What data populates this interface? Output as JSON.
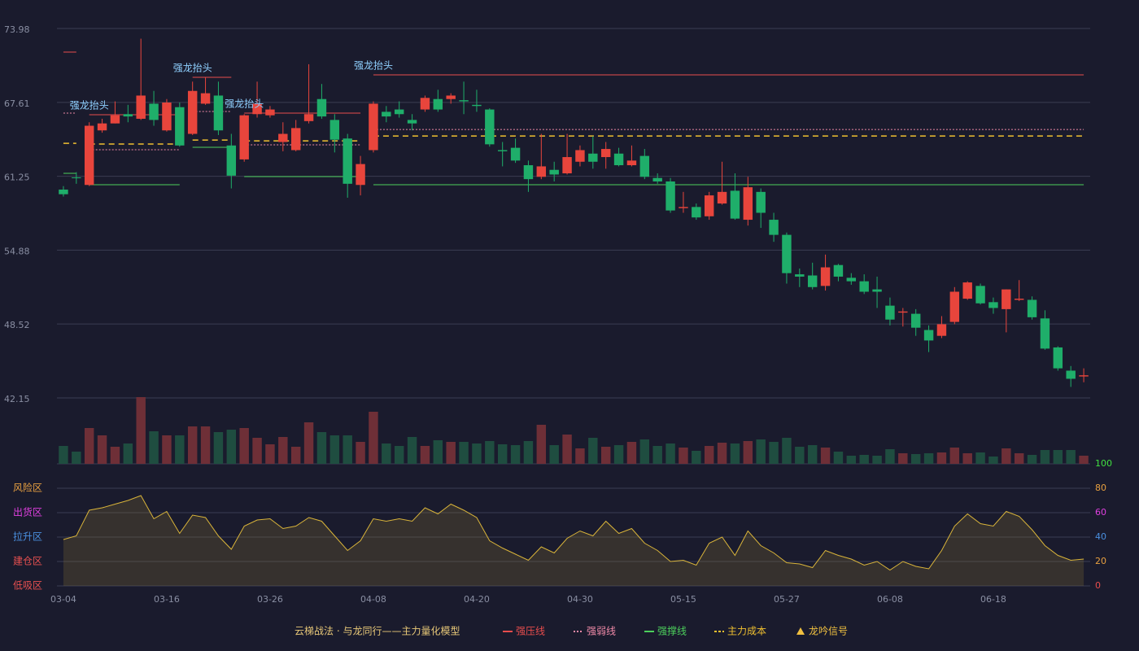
{
  "chart_data": {
    "type": "candlestick",
    "categories": [
      "03-04",
      null,
      null,
      null,
      null,
      null,
      null,
      null,
      "03-16",
      null,
      null,
      null,
      null,
      null,
      null,
      null,
      "03-26",
      null,
      null,
      null,
      null,
      null,
      null,
      null,
      "04-08",
      null,
      null,
      null,
      null,
      null,
      null,
      null,
      "04-20",
      null,
      null,
      null,
      null,
      null,
      null,
      null,
      "04-30",
      null,
      null,
      null,
      null,
      null,
      null,
      null,
      "05-15",
      null,
      null,
      null,
      null,
      null,
      null,
      null,
      "05-27",
      null,
      null,
      null,
      null,
      null,
      null,
      null,
      "06-08",
      null,
      null,
      null,
      null,
      null,
      null,
      null,
      "06-18",
      null,
      null,
      null,
      null,
      null,
      null,
      null
    ],
    "open": [
      60.1,
      61.15,
      60.5,
      65.2,
      65.8,
      66.6,
      66.2,
      67.5,
      65.2,
      67.2,
      64.9,
      67.5,
      68.2,
      63.9,
      62.7,
      66.6,
      66.5,
      64.2,
      63.5,
      66.0,
      67.9,
      66.1,
      64.5,
      60.5,
      63.5,
      66.8,
      67.0,
      66.1,
      67.0,
      67.9,
      67.9,
      67.8,
      67.4,
      67.0,
      63.5,
      63.7,
      62.2,
      61.2,
      61.8,
      61.5,
      62.5,
      63.2,
      62.9,
      63.2,
      62.2,
      63.0,
      61.1,
      60.8,
      58.5,
      58.6,
      57.8,
      58.9,
      60.0,
      57.5,
      59.9,
      57.5,
      56.2,
      52.8,
      52.7,
      51.8,
      53.6,
      52.5,
      52.2,
      51.5,
      50.1,
      49.5,
      49.4,
      48.0,
      47.5,
      48.7,
      50.7,
      51.8,
      50.4,
      49.8,
      50.6,
      50.6,
      49.0,
      46.5,
      44.5,
      44.0
    ],
    "high": [
      60.4,
      61.6,
      65.9,
      66.2,
      67.7,
      67.4,
      73.1,
      68.6,
      67.9,
      67.6,
      69.4,
      69.8,
      69.4,
      64.9,
      66.6,
      69.4,
      67.3,
      65.9,
      66.1,
      70.9,
      69.2,
      66.6,
      64.9,
      63.0,
      67.7,
      67.3,
      67.7,
      66.6,
      68.2,
      68.7,
      68.4,
      69.4,
      68.7,
      67.1,
      64.2,
      64.5,
      62.6,
      64.9,
      62.5,
      64.9,
      63.9,
      64.7,
      64.2,
      63.7,
      63.9,
      63.6,
      61.5,
      61.1,
      59.9,
      58.9,
      59.9,
      62.5,
      61.5,
      61.2,
      60.2,
      58.1,
      56.4,
      53.3,
      53.8,
      54.5,
      53.7,
      52.9,
      52.8,
      52.6,
      50.8,
      49.9,
      49.8,
      48.4,
      49.2,
      51.7,
      52.2,
      52.0,
      50.8,
      51.5,
      52.3,
      50.9,
      49.7,
      46.6,
      44.9,
      44.7
    ],
    "low": [
      59.5,
      60.6,
      60.4,
      65.0,
      65.8,
      65.9,
      66.1,
      65.6,
      65.1,
      63.8,
      64.8,
      67.4,
      64.8,
      60.2,
      62.5,
      66.3,
      66.3,
      63.4,
      63.4,
      65.8,
      66.2,
      63.3,
      59.4,
      59.6,
      63.3,
      65.9,
      66.3,
      65.2,
      66.8,
      66.8,
      67.5,
      66.6,
      66.8,
      63.8,
      62.1,
      62.4,
      59.9,
      61.0,
      60.8,
      61.4,
      62.1,
      61.9,
      61.9,
      62.1,
      62.1,
      61.0,
      60.6,
      58.1,
      58.1,
      57.5,
      57.5,
      58.8,
      57.5,
      57.0,
      56.8,
      55.6,
      52.0,
      51.7,
      51.5,
      51.4,
      52.2,
      51.9,
      51.1,
      49.9,
      48.4,
      48.3,
      47.5,
      46.1,
      47.3,
      48.5,
      50.6,
      50.2,
      49.4,
      47.8,
      50.5,
      48.9,
      46.3,
      44.5,
      43.1,
      43.5
    ],
    "close": [
      59.7,
      61.1,
      65.6,
      65.8,
      66.5,
      66.4,
      68.2,
      66.1,
      67.6,
      63.9,
      68.6,
      68.4,
      65.2,
      61.3,
      66.5,
      67.5,
      67.0,
      64.9,
      65.4,
      66.6,
      66.4,
      64.4,
      60.6,
      62.3,
      67.5,
      66.4,
      66.6,
      65.8,
      68.0,
      67.0,
      68.2,
      67.7,
      67.3,
      64.0,
      63.4,
      62.6,
      61.0,
      62.1,
      61.4,
      62.9,
      63.5,
      62.5,
      63.6,
      62.2,
      62.6,
      61.2,
      60.8,
      58.3,
      58.6,
      57.7,
      59.6,
      59.9,
      57.6,
      60.3,
      58.1,
      56.2,
      52.9,
      52.6,
      51.7,
      53.4,
      52.6,
      52.2,
      51.3,
      51.3,
      48.9,
      49.6,
      48.2,
      47.1,
      48.5,
      51.3,
      52.1,
      50.3,
      49.9,
      51.5,
      50.7,
      49.1,
      46.4,
      44.7,
      43.8,
      44.1
    ],
    "ylim": [
      42.15,
      73.98
    ],
    "yticks": [
      73.98,
      67.61,
      61.25,
      54.88,
      48.52,
      42.15
    ],
    "grid": true,
    "up_color": "#e8453c",
    "down_color": "#1fae6a",
    "volume": {
      "values": [
        22,
        15,
        44,
        35,
        21,
        25,
        82,
        40,
        35,
        35,
        46,
        46,
        39,
        42,
        44,
        32,
        24,
        33,
        21,
        51,
        39,
        35,
        35,
        27,
        64,
        25,
        22,
        33,
        22,
        29,
        27,
        27,
        25,
        28,
        24,
        23,
        28,
        48,
        23,
        36,
        19,
        32,
        21,
        23,
        27,
        30,
        22,
        25,
        20,
        16,
        22,
        26,
        25,
        28,
        30,
        27,
        32,
        21,
        23,
        20,
        15,
        10,
        11,
        10,
        18,
        13,
        12,
        13,
        14,
        20,
        13,
        14,
        9,
        19,
        13,
        11,
        17,
        17,
        17,
        10
      ],
      "ylim": [
        0,
        82
      ],
      "up_color": "#6e2f37",
      "down_color": "#1f4d40"
    },
    "indicator": {
      "values": [
        38,
        41,
        62,
        64,
        67,
        70,
        74,
        55,
        61,
        43,
        58,
        56,
        41,
        30,
        49,
        54,
        55,
        47,
        49,
        56,
        53,
        41,
        29,
        37,
        55,
        53,
        55,
        53,
        64,
        59,
        67,
        62,
        56,
        37,
        31,
        26,
        21,
        32,
        27,
        39,
        45,
        41,
        53,
        43,
        47,
        35,
        29,
        20,
        21,
        17,
        35,
        40,
        25,
        45,
        33,
        27,
        19,
        18,
        15,
        29,
        25,
        22,
        17,
        20,
        13,
        20,
        16,
        14,
        29,
        49,
        59,
        51,
        49,
        61,
        57,
        46,
        33,
        25,
        21,
        22
      ],
      "ylim": [
        0,
        100
      ],
      "yticks": [
        0,
        20,
        40,
        60,
        80,
        100
      ],
      "tick_colors": [
        "#e84d4d",
        "#e8a040",
        "#4a90e0",
        "#e040e0",
        "#e8a040",
        "#40e040"
      ],
      "color": "#d9b43a",
      "zones": [
        {
          "label": "风险区",
          "value": 80,
          "color": "#e8a040"
        },
        {
          "label": "出货区",
          "value": 60,
          "color": "#e040e0"
        },
        {
          "label": "拉升区",
          "value": 40,
          "color": "#4a90e0"
        },
        {
          "label": "建仓区",
          "value": 20,
          "color": "#e85050"
        },
        {
          "label": "低吸区",
          "value": 0,
          "color": "#e85050"
        }
      ]
    },
    "levels": [
      {
        "name": "强压线",
        "color": "#e84d4d",
        "style": "solid",
        "segments": [
          {
            "start": 0,
            "end": 1,
            "value": 71.95
          },
          {
            "start": 2,
            "end": 9,
            "value": 66.55
          },
          {
            "start": 10,
            "end": 13,
            "value": 69.77
          },
          {
            "start": 14,
            "end": 23,
            "value": 66.69
          },
          {
            "start": 24,
            "end": 79,
            "value": 69.98
          }
        ]
      },
      {
        "name": "强弱线",
        "color": "#f08aa8",
        "style": "dotted",
        "segments": [
          {
            "start": 0,
            "end": 1,
            "value": 66.69
          },
          {
            "start": 2,
            "end": 9,
            "value": 63.53
          },
          {
            "start": 10,
            "end": 13,
            "value": 66.83
          },
          {
            "start": 14,
            "end": 23,
            "value": 63.95
          },
          {
            "start": 24,
            "end": 79,
            "value": 65.28
          }
        ]
      },
      {
        "name": "强撑线",
        "color": "#4ccf5c",
        "style": "solid",
        "segments": [
          {
            "start": 0,
            "end": 1,
            "value": 61.5
          },
          {
            "start": 2,
            "end": 9,
            "value": 60.52
          },
          {
            "start": 10,
            "end": 13,
            "value": 63.74
          },
          {
            "start": 14,
            "end": 23,
            "value": 61.22
          },
          {
            "start": 24,
            "end": 79,
            "value": 60.52
          }
        ]
      },
      {
        "name": "主力成本",
        "color": "#f0c030",
        "style": "dashed",
        "segments": [
          {
            "start": 0,
            "end": 1,
            "value": 64.09
          },
          {
            "start": 2,
            "end": 9,
            "value": 64.02
          },
          {
            "start": 10,
            "end": 13,
            "value": 64.37
          },
          {
            "start": 14,
            "end": 23,
            "value": 64.3
          },
          {
            "start": 24,
            "end": 79,
            "value": 64.72
          }
        ]
      }
    ],
    "signals": {
      "name": "龙吟信号",
      "label": "强龙抬头",
      "color": "#f0c040",
      "label_color": "#8fd0ff",
      "indices": [
        2,
        10,
        14,
        24
      ]
    },
    "model_title": "云梯战法 · 与龙同行——主力量化模型",
    "model_title_color": "#e8c878"
  }
}
